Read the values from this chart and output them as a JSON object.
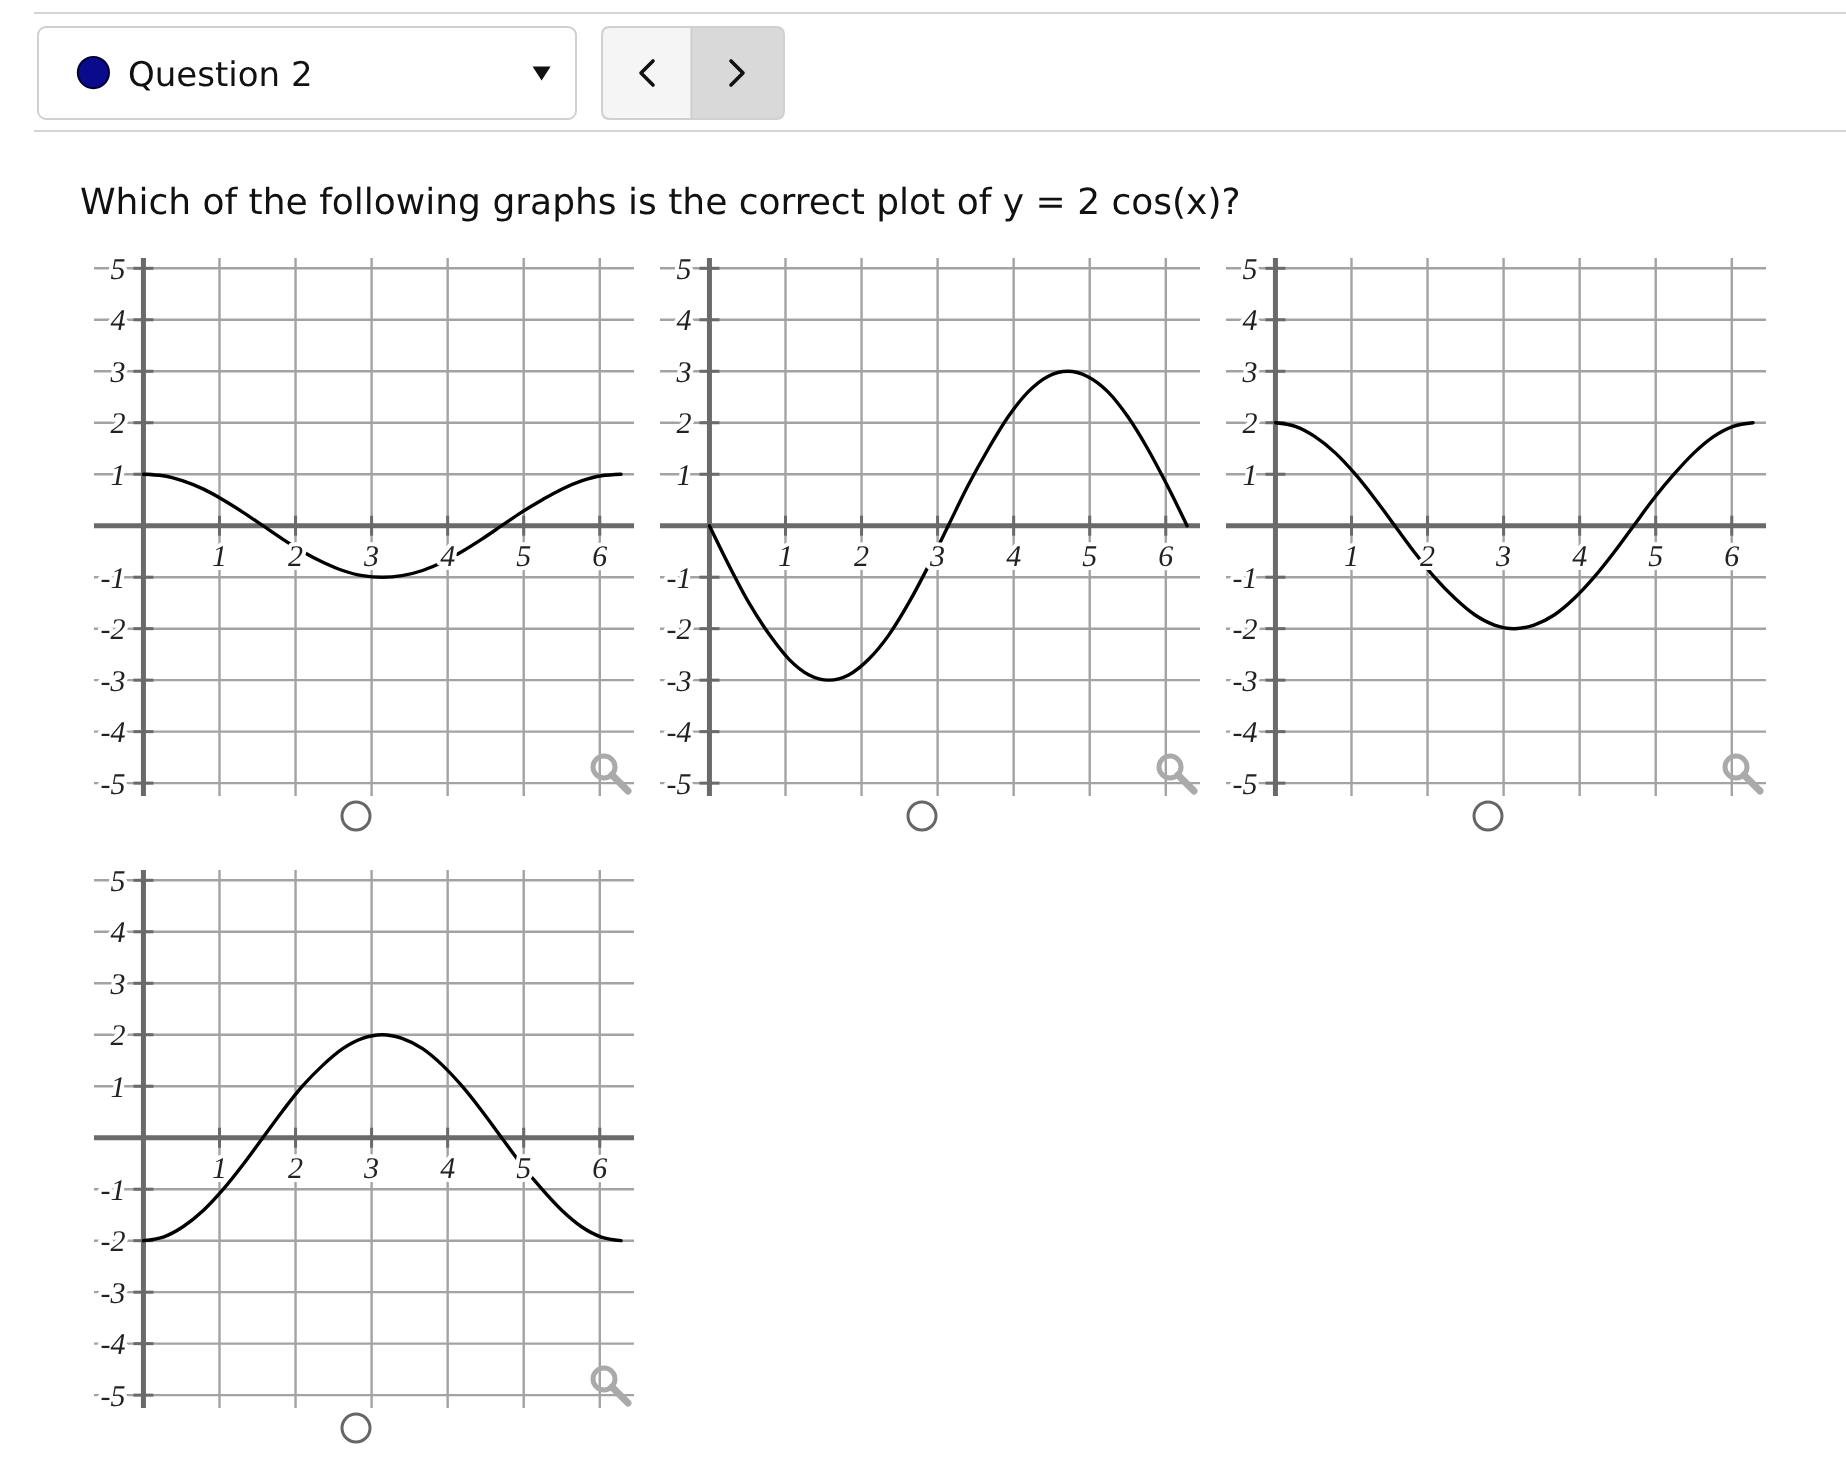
{
  "chart_data": [
    {
      "type": "line",
      "title": "Which of the following graphs is the correct plot of y = 2 cos(x)?",
      "annotations": [
        "Question 2"
      ],
      "x": [
        0,
        0.26,
        0.52,
        0.79,
        1.05,
        1.31,
        1.57,
        1.83,
        2.09,
        2.36,
        2.62,
        2.88,
        3.14,
        3.4,
        3.67,
        3.93,
        4.19,
        4.45,
        4.71,
        4.97,
        5.24,
        5.5,
        5.76,
        6.02,
        6.28
      ],
      "values": [
        1,
        0.97,
        0.87,
        0.71,
        0.5,
        0.26,
        0,
        -0.26,
        -0.5,
        -0.71,
        -0.87,
        -0.97,
        -1,
        -0.97,
        -0.87,
        -0.71,
        -0.5,
        -0.26,
        0,
        0.26,
        0.5,
        0.71,
        0.87,
        0.97,
        1
      ],
      "color": "#000000",
      "xlim": [
        -0.65,
        6.45
      ],
      "ylim": [
        -5.25,
        5.2
      ],
      "xticks": [
        1,
        2,
        3,
        4,
        5,
        6
      ],
      "yticks": [
        -5,
        -4,
        -3,
        -2,
        -1,
        1,
        2,
        3,
        4,
        5
      ],
      "grid": true
    },
    {
      "type": "line",
      "x": [
        0,
        0.26,
        0.52,
        0.79,
        1.05,
        1.31,
        1.57,
        1.83,
        2.09,
        2.36,
        2.62,
        2.88,
        3.14,
        3.4,
        3.67,
        3.93,
        4.19,
        4.45,
        4.71,
        4.97,
        5.24,
        5.5,
        5.76,
        6.02,
        6.28
      ],
      "values": [
        0,
        -0.78,
        -1.5,
        -2.12,
        -2.6,
        -2.9,
        -3,
        -2.9,
        -2.6,
        -2.12,
        -1.5,
        -0.78,
        0,
        0.78,
        1.5,
        2.12,
        2.6,
        2.9,
        3,
        2.9,
        2.6,
        2.12,
        1.5,
        0.78,
        0
      ],
      "color": "#000000",
      "xlim": [
        -0.65,
        6.45
      ],
      "ylim": [
        -5.25,
        5.2
      ],
      "xticks": [
        1,
        2,
        3,
        4,
        5,
        6
      ],
      "yticks": [
        -5,
        -4,
        -3,
        -2,
        -1,
        1,
        2,
        3,
        4,
        5
      ],
      "grid": true
    },
    {
      "type": "line",
      "x": [
        0,
        0.26,
        0.52,
        0.79,
        1.05,
        1.31,
        1.57,
        1.83,
        2.09,
        2.36,
        2.62,
        2.88,
        3.14,
        3.4,
        3.67,
        3.93,
        4.19,
        4.45,
        4.71,
        4.97,
        5.24,
        5.5,
        5.76,
        6.02,
        6.28
      ],
      "values": [
        2,
        1.93,
        1.73,
        1.41,
        1,
        0.52,
        0,
        -0.52,
        -1,
        -1.41,
        -1.73,
        -1.93,
        -2,
        -1.93,
        -1.73,
        -1.41,
        -1,
        -0.52,
        0,
        0.52,
        1,
        1.41,
        1.73,
        1.93,
        2
      ],
      "color": "#000000",
      "xlim": [
        -0.65,
        6.45
      ],
      "ylim": [
        -5.25,
        5.2
      ],
      "xticks": [
        1,
        2,
        3,
        4,
        5,
        6
      ],
      "yticks": [
        -5,
        -4,
        -3,
        -2,
        -1,
        1,
        2,
        3,
        4,
        5
      ],
      "grid": true
    },
    {
      "type": "line",
      "x": [
        0,
        0.26,
        0.52,
        0.79,
        1.05,
        1.31,
        1.57,
        1.83,
        2.09,
        2.36,
        2.62,
        2.88,
        3.14,
        3.4,
        3.67,
        3.93,
        4.19,
        4.45,
        4.71,
        4.97,
        5.24,
        5.5,
        5.76,
        6.02,
        6.28
      ],
      "values": [
        -2,
        -1.93,
        -1.73,
        -1.41,
        -1,
        -0.52,
        0,
        0.52,
        1,
        1.41,
        1.73,
        1.93,
        2,
        1.93,
        1.73,
        1.41,
        1,
        0.52,
        0,
        -0.52,
        -1,
        -1.41,
        -1.73,
        -1.93,
        -2
      ],
      "color": "#000000",
      "xlim": [
        -0.65,
        6.45
      ],
      "ylim": [
        -5.25,
        5.2
      ],
      "xticks": [
        1,
        2,
        3,
        4,
        5,
        6
      ],
      "yticks": [
        -5,
        -4,
        -3,
        -2,
        -1,
        1,
        2,
        3,
        4,
        5
      ],
      "grid": true
    }
  ]
}
